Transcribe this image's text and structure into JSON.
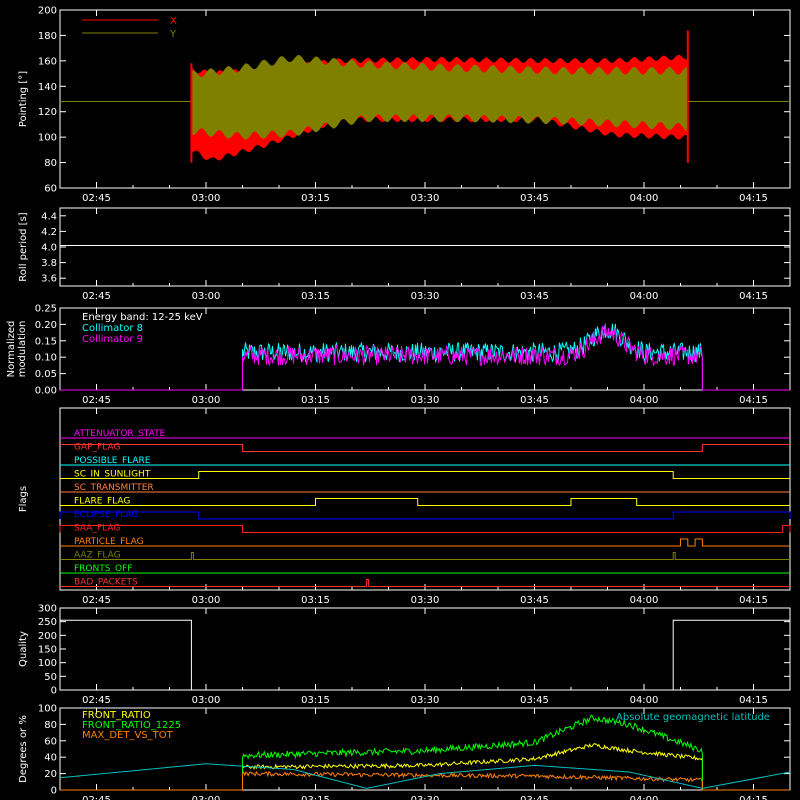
{
  "chart_data": [
    {
      "type": "area",
      "ylabel": "Pointing [°]",
      "ylim": [
        60,
        200
      ],
      "yticks": [
        60,
        80,
        100,
        120,
        140,
        160,
        180,
        200
      ],
      "xticks": [
        "02:45",
        "03:00",
        "03:15",
        "03:30",
        "03:45",
        "04:00",
        "04:15"
      ],
      "legend": "top-left",
      "series": [
        {
          "name": "X",
          "color": "#ff0000",
          "start": "02:58",
          "end": "04:06",
          "upper": [
            [
              0,
              155
            ],
            [
              0.04,
              152
            ],
            [
              0.15,
              155
            ],
            [
              0.3,
              162
            ],
            [
              0.5,
              163
            ],
            [
              0.7,
              162
            ],
            [
              0.85,
              162
            ],
            [
              1,
              165
            ]
          ],
          "lower": [
            [
              0,
              88
            ],
            [
              0.04,
              80
            ],
            [
              0.15,
              92
            ],
            [
              0.3,
              112
            ],
            [
              0.5,
              112
            ],
            [
              0.7,
              112
            ],
            [
              0.85,
              100
            ],
            [
              1,
              98
            ]
          ]
        },
        {
          "name": "Y",
          "color": "#808000",
          "start": "02:58",
          "end": "04:06",
          "upper": [
            [
              0,
              152
            ],
            [
              0.1,
              157
            ],
            [
              0.2,
              165
            ],
            [
              0.35,
              160
            ],
            [
              0.55,
              157
            ],
            [
              0.75,
              155
            ],
            [
              1,
              155
            ]
          ],
          "lower": [
            [
              0,
              102
            ],
            [
              0.1,
              98
            ],
            [
              0.2,
              100
            ],
            [
              0.35,
              112
            ],
            [
              0.55,
              112
            ],
            [
              0.75,
              110
            ],
            [
              1,
              105
            ]
          ],
          "baseline": 128
        }
      ]
    },
    {
      "type": "line",
      "ylabel": "Roll period [s]",
      "ylim": [
        3.5,
        4.5
      ],
      "yticks": [
        "3.6",
        "3.8",
        "4.0",
        "4.2",
        "4.4"
      ],
      "xticks": [
        "02:45",
        "03:00",
        "03:15",
        "03:30",
        "03:45",
        "04:00",
        "04:15"
      ],
      "series": [
        {
          "name": "",
          "color": "#ffffff",
          "value": 4.02
        }
      ]
    },
    {
      "type": "line",
      "ylabel": "Normalized modulation",
      "ylim": [
        0,
        0.25
      ],
      "yticks": [
        "0.00",
        "0.05",
        "0.10",
        "0.15",
        "0.20",
        "0.25"
      ],
      "xticks": [
        "02:45",
        "03:00",
        "03:15",
        "03:30",
        "03:45",
        "04:00",
        "04:15"
      ],
      "annotation": "Energy band: 12-25 keV",
      "legend": "top-left",
      "start": "03:05",
      "end": "04:08",
      "series": [
        {
          "name": "Collimator 8",
          "color": "#00ffff"
        },
        {
          "name": "Collimator 9",
          "color": "#ff00ff"
        }
      ]
    },
    {
      "type": "line",
      "ylabel": "Flags",
      "xticks": [
        "02:45",
        "03:00",
        "03:15",
        "03:30",
        "03:45",
        "04:00",
        "04:15"
      ],
      "flags": [
        {
          "name": "ATTENUATOR_STATE",
          "color": "#ff00ff",
          "on": []
        },
        {
          "name": "GAP_FLAG",
          "color": "#ff3030",
          "on": [
            [
              "03:05",
              "04:08"
            ]
          ],
          "invert": true
        },
        {
          "name": "POSSIBLE_FLARE",
          "color": "#00ffff",
          "on": []
        },
        {
          "name": "SC_IN_SUNLIGHT",
          "color": "#ffff00",
          "on": [
            [
              "02:59",
              "04:04"
            ]
          ]
        },
        {
          "name": "SC_TRANSMITTER",
          "color": "#ff8040",
          "on": []
        },
        {
          "name": "FLARE_FLAG",
          "color": "#ffff00",
          "on": [
            [
              "03:15",
              "03:29"
            ],
            [
              "03:50",
              "03:59"
            ]
          ]
        },
        {
          "name": "ECLIPSE_FLAG",
          "color": "#0000ff",
          "on": [
            [
              "02:40",
              "02:59"
            ],
            [
              "04:04",
              "04:20"
            ]
          ]
        },
        {
          "name": "SAA_FLAG",
          "color": "#ff2020",
          "on": [
            [
              "02:40",
              "03:05"
            ],
            [
              "04:19",
              "04:20"
            ]
          ]
        },
        {
          "name": "PARTICLE_FLAG",
          "color": "#ff8000",
          "on": [
            [
              "04:05",
              "04:06"
            ],
            [
              "04:07",
              "04:08"
            ]
          ]
        },
        {
          "name": "AAZ_FLAG",
          "color": "#808000",
          "on": [
            [
              "02:58",
              "02:58"
            ],
            [
              "04:04",
              "04:04"
            ]
          ]
        },
        {
          "name": "FRONTS_OFF",
          "color": "#00ff00",
          "on": []
        },
        {
          "name": "BAD_PACKETS",
          "color": "#ff3030",
          "on": [
            [
              "03:22",
              "03:22"
            ]
          ]
        }
      ]
    },
    {
      "type": "line",
      "ylabel": "Quality",
      "ylim": [
        0,
        300
      ],
      "yticks": [
        "0",
        "50",
        "100",
        "150",
        "200",
        "250",
        "300"
      ],
      "xticks": [
        "02:45",
        "03:00",
        "03:15",
        "03:30",
        "03:45",
        "04:00",
        "04:15"
      ],
      "series": [
        {
          "name": "",
          "color": "#ffffff",
          "points": [
            [
              "02:40",
              255
            ],
            [
              "02:58",
              255
            ],
            [
              "02:58",
              0
            ],
            [
              "04:04",
              0
            ],
            [
              "04:04",
              30
            ],
            [
              "04:04",
              255
            ],
            [
              "04:20",
              255
            ]
          ]
        }
      ]
    },
    {
      "type": "line",
      "ylabel": "Degrees or %",
      "ylim": [
        0,
        100
      ],
      "yticks": [
        "0",
        "20",
        "40",
        "60",
        "80",
        "100"
      ],
      "xticks": [
        "02:45",
        "03:00",
        "03:15",
        "03:30",
        "03:45",
        "04:00",
        "04:15"
      ],
      "legend": "top-left",
      "series": [
        {
          "name": "FRONT_RATIO",
          "color": "#ffff00",
          "points": [
            [
              "03:05",
              28
            ],
            [
              "03:30",
              30
            ],
            [
              "03:45",
              38
            ],
            [
              "03:53",
              55
            ],
            [
              "03:58",
              48
            ],
            [
              "04:08",
              38
            ]
          ]
        },
        {
          "name": "FRONT_RATIO_1225",
          "color": "#00ff00",
          "points": [
            [
              "03:05",
              42
            ],
            [
              "03:30",
              48
            ],
            [
              "03:45",
              58
            ],
            [
              "03:53",
              88
            ],
            [
              "03:58",
              80
            ],
            [
              "04:08",
              48
            ]
          ]
        },
        {
          "name": "MAX_DET_VS_TOT",
          "color": "#ff8000",
          "points": [
            [
              "03:05",
              20
            ],
            [
              "03:30",
              18
            ],
            [
              "03:45",
              17
            ],
            [
              "03:55",
              15
            ],
            [
              "04:08",
              12
            ]
          ]
        },
        {
          "name": "Absolute geomagnetic latitude",
          "color": "#00c0c0",
          "points": [
            [
              "02:40",
              15
            ],
            [
              "03:00",
              32
            ],
            [
              "03:12",
              25
            ],
            [
              "03:22",
              2
            ],
            [
              "03:32",
              20
            ],
            [
              "03:45",
              30
            ],
            [
              "03:58",
              22
            ],
            [
              "04:08",
              2
            ],
            [
              "04:20",
              22
            ]
          ]
        }
      ]
    }
  ]
}
